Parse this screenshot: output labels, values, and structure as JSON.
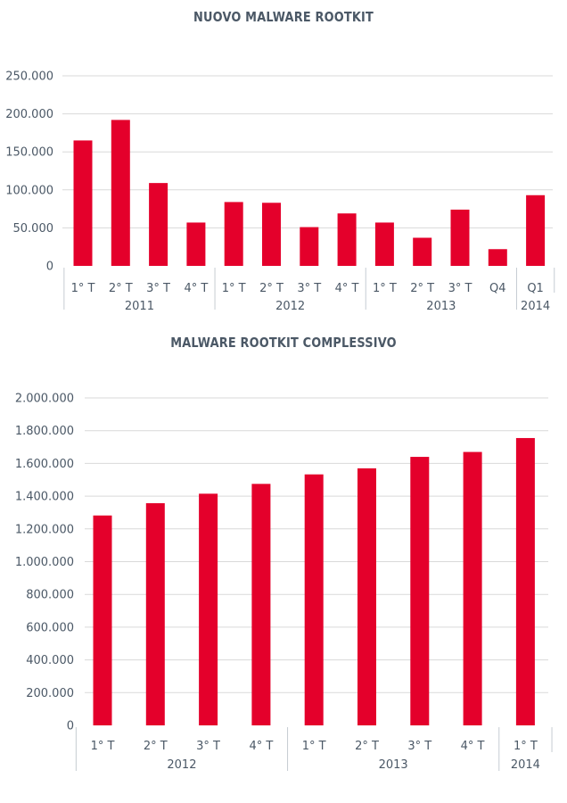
{
  "chart_data": [
    {
      "type": "bar",
      "title": "NUOVO MALWARE ROOTKIT",
      "categories": [
        "1° T",
        "2° T",
        "3° T",
        "4° T",
        "1° T",
        "2° T",
        "3° T",
        "4° T",
        "1° T",
        "2° T",
        "3° T",
        "Q4",
        "Q1"
      ],
      "groups": [
        {
          "label": "2011",
          "count": 4
        },
        {
          "label": "2012",
          "count": 4
        },
        {
          "label": "2013",
          "count": 4
        },
        {
          "label": "2014",
          "count": 1
        }
      ],
      "values": [
        165000,
        192000,
        109000,
        57000,
        84000,
        83000,
        51000,
        69000,
        57000,
        37000,
        74000,
        22000,
        93000
      ],
      "ylim": [
        0,
        250000
      ],
      "yticks": [
        "0",
        "50.000",
        "100.000",
        "150.000",
        "200.000",
        "250.000"
      ],
      "ytick_values": [
        0,
        50000,
        100000,
        150000,
        200000,
        250000
      ],
      "bar_color": "#e4002b",
      "grid": true
    },
    {
      "type": "bar",
      "title": "MALWARE ROOTKIT COMPLESSIVO",
      "categories": [
        "1° T",
        "2° T",
        "3° T",
        "4° T",
        "1° T",
        "2° T",
        "3° T",
        "4° T",
        "1° T"
      ],
      "groups": [
        {
          "label": "2012",
          "count": 4
        },
        {
          "label": "2013",
          "count": 4
        },
        {
          "label": "2014",
          "count": 1
        }
      ],
      "values": [
        1282000,
        1357000,
        1415000,
        1475000,
        1533000,
        1570000,
        1640000,
        1670000,
        1755000
      ],
      "ylim": [
        0,
        2000000
      ],
      "yticks": [
        "0",
        "200.000",
        "400.000",
        "600.000",
        "800.000",
        "1.000.000",
        "1.200.000",
        "1.400.000",
        "1.600.000",
        "1.800.000",
        "2.000.000"
      ],
      "ytick_values": [
        0,
        200000,
        400000,
        600000,
        800000,
        1000000,
        1200000,
        1400000,
        1600000,
        1800000,
        2000000
      ],
      "bar_color": "#e4002b",
      "grid": true
    }
  ]
}
